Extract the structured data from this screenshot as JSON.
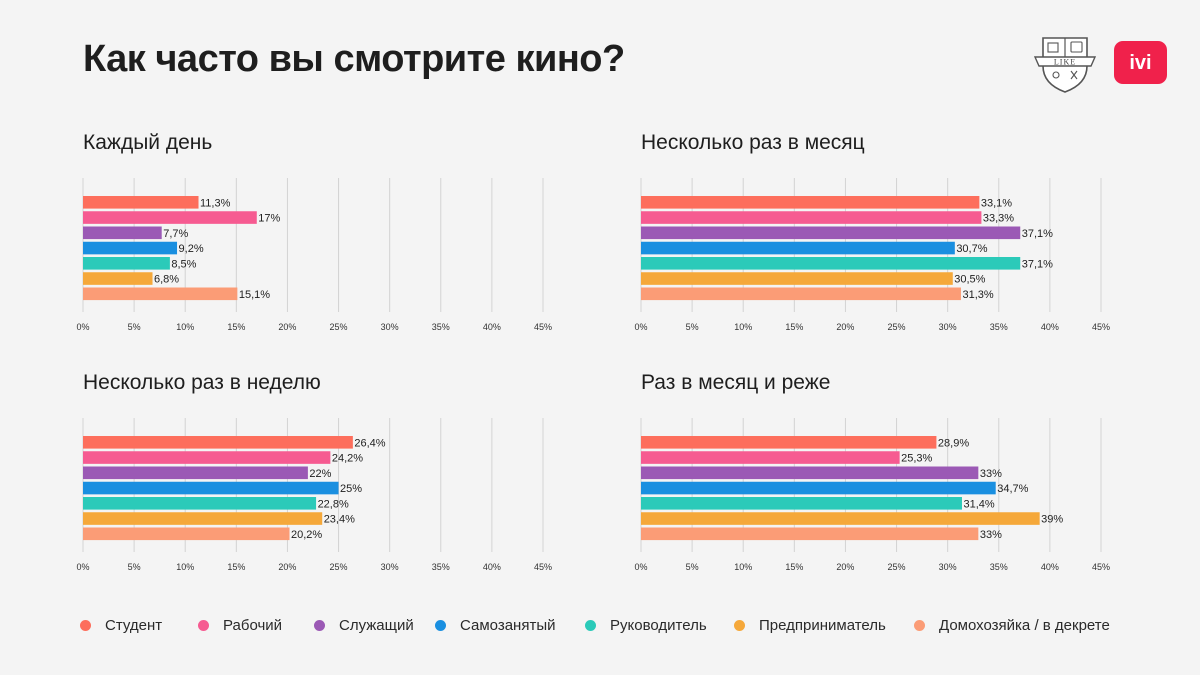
{
  "page": {
    "title": "Как часто вы смотрите кино?",
    "logo_like_text": "LIKE",
    "logo_ivi_text": "ivi"
  },
  "colors": {
    "Студент": "#fd6e5c",
    "Рабочий": "#f65b91",
    "Служащий": "#9b59b5",
    "Самозанятый": "#1a8fe0",
    "Руководитель": "#2bcab9",
    "Предприниматель": "#f5a83a",
    "Домохозяйка / в декрете": "#fb9c76"
  },
  "legend": {
    "items": [
      {
        "label": "Студент",
        "color": "#fd6e5c"
      },
      {
        "label": "Рабочий",
        "color": "#f65b91"
      },
      {
        "label": "Служащий",
        "color": "#9b59b5"
      },
      {
        "label": "Самозанятый",
        "color": "#1a8fe0"
      },
      {
        "label": "Руководитель",
        "color": "#2bcab9"
      },
      {
        "label": "Предприниматель",
        "color": "#f5a83a"
      },
      {
        "label": "Домохозяйка / в декрете",
        "color": "#fb9c76"
      }
    ]
  },
  "chart_data": [
    {
      "type": "bar",
      "orientation": "horizontal",
      "title": "Каждый день",
      "categories": [
        "Студент",
        "Рабочий",
        "Служащий",
        "Самозанятый",
        "Руководитель",
        "Предприниматель",
        "Домохозяйка / в декрете"
      ],
      "values": [
        11.3,
        17,
        7.7,
        9.2,
        8.5,
        6.8,
        15.1
      ],
      "value_labels": [
        "11,3%",
        "17%",
        "7,7%",
        "9,2%",
        "8,5%",
        "6,8%",
        "15,1%"
      ],
      "xlim": [
        0,
        45
      ],
      "xticks": [
        "0%",
        "5%",
        "10%",
        "15%",
        "20%",
        "25%",
        "30%",
        "35%",
        "40%",
        "45%"
      ],
      "grid": true
    },
    {
      "type": "bar",
      "orientation": "horizontal",
      "title": "Несколько раз в месяц",
      "categories": [
        "Студент",
        "Рабочий",
        "Служащий",
        "Самозанятый",
        "Руководитель",
        "Предприниматель",
        "Домохозяйка / в декрете"
      ],
      "values": [
        33.1,
        33.3,
        37.1,
        30.7,
        37.1,
        30.5,
        31.3
      ],
      "value_labels": [
        "33,1%",
        "33,3%",
        "37,1%",
        "30,7%",
        "37,1%",
        "30,5%",
        "31,3%"
      ],
      "xlim": [
        0,
        45
      ],
      "xticks": [
        "0%",
        "5%",
        "10%",
        "15%",
        "20%",
        "25%",
        "30%",
        "35%",
        "40%",
        "45%"
      ],
      "grid": true
    },
    {
      "type": "bar",
      "orientation": "horizontal",
      "title": "Несколько раз в неделю",
      "categories": [
        "Студент",
        "Рабочий",
        "Служащий",
        "Самозанятый",
        "Руководитель",
        "Предприниматель",
        "Домохозяйка / в декрете"
      ],
      "values": [
        26.4,
        24.2,
        22,
        25,
        22.8,
        23.4,
        20.2
      ],
      "value_labels": [
        "26,4%",
        "24,2%",
        "22%",
        "25%",
        "22,8%",
        "23,4%",
        "20,2%"
      ],
      "xlim": [
        0,
        45
      ],
      "xticks": [
        "0%",
        "5%",
        "10%",
        "15%",
        "20%",
        "25%",
        "30%",
        "35%",
        "40%",
        "45%"
      ],
      "grid": true
    },
    {
      "type": "bar",
      "orientation": "horizontal",
      "title": "Раз в месяц и реже",
      "categories": [
        "Студент",
        "Рабочий",
        "Служащий",
        "Самозанятый",
        "Руководитель",
        "Предприниматель",
        "Домохозяйка / в декрете"
      ],
      "values": [
        28.9,
        25.3,
        33,
        34.7,
        31.4,
        39,
        33
      ],
      "value_labels": [
        "28,9%",
        "25,3%",
        "33%",
        "34,7%",
        "31,4%",
        "39%",
        "33%"
      ],
      "xlim": [
        0,
        45
      ],
      "xticks": [
        "0%",
        "5%",
        "10%",
        "15%",
        "20%",
        "25%",
        "30%",
        "35%",
        "40%",
        "45%"
      ],
      "grid": true
    }
  ]
}
